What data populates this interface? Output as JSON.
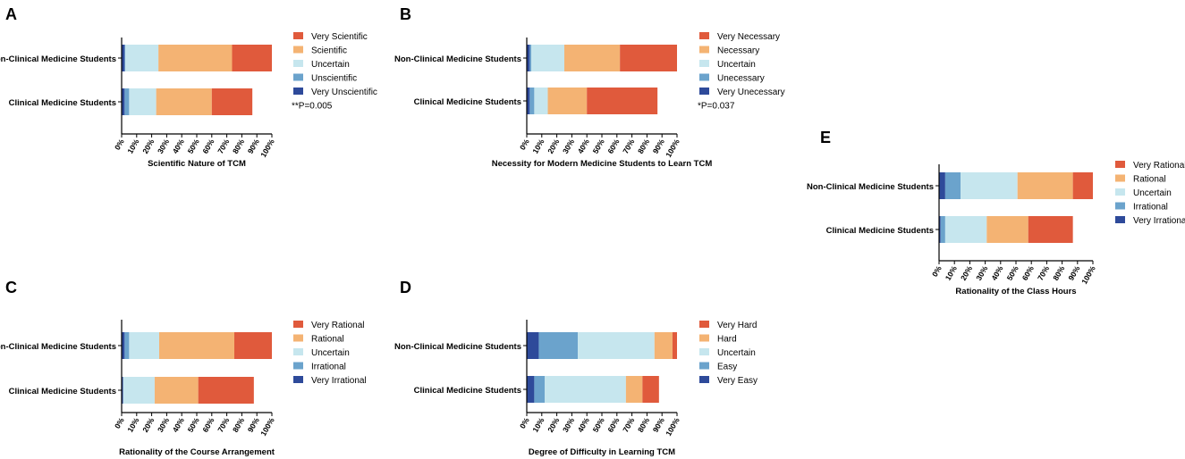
{
  "colors": {
    "very_pos": "#e05a3c",
    "pos": "#f4b373",
    "uncertain": "#c6e6ee",
    "neg": "#6ba3cc",
    "very_neg": "#2e4a9a",
    "axis": "#000000"
  },
  "chart_data": [
    {
      "panel": "A",
      "type": "bar",
      "orientation": "horizontal",
      "stacked": true,
      "title": "Scientific Nature of TCM",
      "categories": [
        "Non-Clinical Medicine Students",
        "Clinical Medicine Students"
      ],
      "xlim": [
        0,
        100
      ],
      "xticks": [
        "0%",
        "10%",
        "20%",
        "30%",
        "40%",
        "50%",
        "60%",
        "70%",
        "80%",
        "90%",
        "100%"
      ],
      "series": [
        {
          "name": "Very Unscientific",
          "color_key": "very_neg",
          "values": [
            2,
            2
          ]
        },
        {
          "name": "Unscientific",
          "color_key": "neg",
          "values": [
            0.5,
            3
          ]
        },
        {
          "name": "Uncertain",
          "color_key": "uncertain",
          "values": [
            22,
            18
          ]
        },
        {
          "name": "Scientific",
          "color_key": "pos",
          "values": [
            49,
            37
          ]
        },
        {
          "name": "Very Scientific",
          "color_key": "very_pos",
          "values": [
            26.5,
            27
          ]
        }
      ],
      "legend_order": [
        "Very Scientific",
        "Scientific",
        "Uncertain",
        "Unscientific",
        "Very Unscientific"
      ],
      "annotation": "**P=0.005"
    },
    {
      "panel": "B",
      "type": "bar",
      "orientation": "horizontal",
      "stacked": true,
      "title": "Necessity for Modern Medicine Students to Learn TCM",
      "categories": [
        "Non-Clinical Medicine Students",
        "Clinical Medicine Students"
      ],
      "xlim": [
        0,
        100
      ],
      "xticks": [
        "0%",
        "10%",
        "20%",
        "30%",
        "40%",
        "50%",
        "60%",
        "70%",
        "80%",
        "90%",
        "100%"
      ],
      "series": [
        {
          "name": "Very Unecessary",
          "color_key": "very_neg",
          "values": [
            2,
            2
          ]
        },
        {
          "name": "Unecessary",
          "color_key": "neg",
          "values": [
            1,
            3
          ]
        },
        {
          "name": "Uncertain",
          "color_key": "uncertain",
          "values": [
            22,
            9
          ]
        },
        {
          "name": "Necessary",
          "color_key": "pos",
          "values": [
            37,
            26
          ]
        },
        {
          "name": "Very Necessary",
          "color_key": "very_pos",
          "values": [
            38,
            47
          ]
        }
      ],
      "legend_order": [
        "Very Necessary",
        "Necessary",
        "Uncertain",
        "Unecessary",
        "Very Unecessary"
      ],
      "annotation": "*P=0.037"
    },
    {
      "panel": "C",
      "type": "bar",
      "orientation": "horizontal",
      "stacked": true,
      "title": "Rationality of the Course Arrangement",
      "categories": [
        "Non-Clinical Medicine Students",
        "Clinical Medicine Students"
      ],
      "xlim": [
        0,
        100
      ],
      "xticks": [
        "0%",
        "10%",
        "20%",
        "30%",
        "40%",
        "50%",
        "60%",
        "70%",
        "80%",
        "90%",
        "100%"
      ],
      "series": [
        {
          "name": "Very Irrational",
          "color_key": "very_neg",
          "values": [
            2,
            1
          ]
        },
        {
          "name": "Irrational",
          "color_key": "neg",
          "values": [
            3,
            0
          ]
        },
        {
          "name": "Uncertain",
          "color_key": "uncertain",
          "values": [
            20,
            21
          ]
        },
        {
          "name": "Rational",
          "color_key": "pos",
          "values": [
            50,
            29
          ]
        },
        {
          "name": "Very Rational",
          "color_key": "very_pos",
          "values": [
            25,
            37
          ]
        }
      ],
      "legend_order": [
        "Very Rational",
        "Rational",
        "Uncertain",
        "Irrational",
        "Very Irrational"
      ],
      "annotation": ""
    },
    {
      "panel": "D",
      "type": "bar",
      "orientation": "horizontal",
      "stacked": true,
      "title": "Degree of Difficulty in Learning TCM",
      "categories": [
        "Non-Clinical Medicine Students",
        "Clinical Medicine Students"
      ],
      "xlim": [
        0,
        100
      ],
      "xticks": [
        "0%",
        "10%",
        "20%",
        "30%",
        "40%",
        "50%",
        "60%",
        "70%",
        "80%",
        "90%",
        "100%"
      ],
      "series": [
        {
          "name": "Very Easy",
          "color_key": "very_neg",
          "values": [
            8,
            5
          ]
        },
        {
          "name": "Easy",
          "color_key": "neg",
          "values": [
            26,
            7
          ]
        },
        {
          "name": "Uncertain",
          "color_key": "uncertain",
          "values": [
            51,
            54
          ]
        },
        {
          "name": "Hard",
          "color_key": "pos",
          "values": [
            12,
            11
          ]
        },
        {
          "name": "Very Hard",
          "color_key": "very_pos",
          "values": [
            3,
            11
          ]
        }
      ],
      "legend_order": [
        "Very Hard",
        "Hard",
        "Uncertain",
        "Easy",
        "Very Easy"
      ],
      "annotation": ""
    },
    {
      "panel": "E",
      "type": "bar",
      "orientation": "horizontal",
      "stacked": true,
      "title": "Rationality of the Class Hours",
      "categories": [
        "Non-Clinical Medicine Students",
        "Clinical Medicine Students"
      ],
      "xlim": [
        0,
        100
      ],
      "xticks": [
        "0%",
        "10%",
        "20%",
        "30%",
        "40%",
        "50%",
        "60%",
        "70%",
        "80%",
        "90%",
        "100%"
      ],
      "series": [
        {
          "name": "Very Irrational",
          "color_key": "very_neg",
          "values": [
            4,
            1
          ]
        },
        {
          "name": "Irrational",
          "color_key": "neg",
          "values": [
            10,
            3
          ]
        },
        {
          "name": "Uncertain",
          "color_key": "uncertain",
          "values": [
            37,
            27
          ]
        },
        {
          "name": "Rational",
          "color_key": "pos",
          "values": [
            36,
            27
          ]
        },
        {
          "name": "Very Rational",
          "color_key": "very_pos",
          "values": [
            13,
            29
          ]
        }
      ],
      "legend_order": [
        "Very Rational",
        "Rational",
        "Uncertain",
        "Irrational",
        "Very Irrational"
      ],
      "annotation": ""
    }
  ]
}
